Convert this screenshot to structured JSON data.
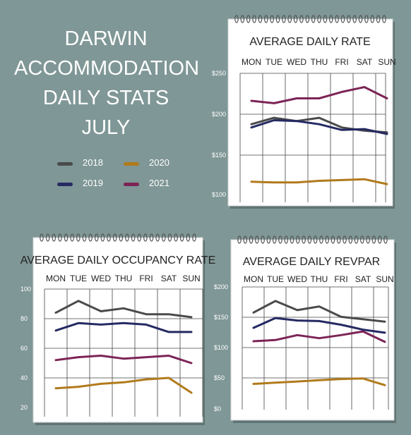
{
  "title_lines": [
    "DARWIN",
    "ACCOMMODATION",
    "DAILY STATS",
    "JULY"
  ],
  "colors": {
    "background": "#7f9796",
    "2018": "#4a4a4a",
    "2019": "#252a63",
    "2020": "#b17a1c",
    "2021": "#7c2456"
  },
  "legend": [
    {
      "label": "2018",
      "color": "#4a4a4a"
    },
    {
      "label": "2020",
      "color": "#b17a1c"
    },
    {
      "label": "2019",
      "color": "#252a63"
    },
    {
      "label": "2021",
      "color": "#7c2456"
    }
  ],
  "chart_data": [
    {
      "type": "line",
      "title": "AVERAGE DAILY RATE",
      "categories": [
        "MON",
        "TUE",
        "WED",
        "THU",
        "FRI",
        "SAT",
        "SUN"
      ],
      "yticks": [
        "$250",
        "$200",
        "$150",
        "$100"
      ],
      "ylim": [
        100,
        250
      ],
      "grid": true,
      "series": [
        {
          "name": "2018",
          "color": "#4a4a4a",
          "values": [
            187,
            195,
            191,
            195,
            183,
            179,
            177
          ]
        },
        {
          "name": "2019",
          "color": "#252a63",
          "values": [
            183,
            192,
            191,
            187,
            180,
            181,
            175
          ]
        },
        {
          "name": "2020",
          "color": "#b17a1c",
          "values": [
            116,
            115,
            115,
            117,
            118,
            119,
            113
          ]
        },
        {
          "name": "2021",
          "color": "#7c2456",
          "values": [
            216,
            213,
            219,
            219,
            227,
            233,
            219
          ]
        }
      ]
    },
    {
      "type": "line",
      "title": "AVERAGE DAILY OCCUPANCY RATE",
      "categories": [
        "MON",
        "TUE",
        "WED",
        "THU",
        "FRI",
        "SAT",
        "SUN"
      ],
      "yticks": [
        "100",
        "80",
        "60",
        "40",
        "20"
      ],
      "ylim": [
        20,
        100
      ],
      "grid": true,
      "series": [
        {
          "name": "2018",
          "color": "#4a4a4a",
          "values": [
            84,
            92,
            85,
            87,
            83,
            83,
            81
          ]
        },
        {
          "name": "2019",
          "color": "#252a63",
          "values": [
            72,
            77,
            76,
            77,
            76,
            71,
            71
          ]
        },
        {
          "name": "2020",
          "color": "#b17a1c",
          "values": [
            33,
            34,
            36,
            37,
            39,
            40,
            30
          ]
        },
        {
          "name": "2021",
          "color": "#7c2456",
          "values": [
            52,
            54,
            55,
            53,
            54,
            55,
            50
          ]
        }
      ]
    },
    {
      "type": "line",
      "title": "AVERAGE DAILY REVPAR",
      "categories": [
        "MON",
        "TUE",
        "WED",
        "THU",
        "FRI",
        "SAT",
        "SUN"
      ],
      "yticks": [
        "$200",
        "$150",
        "$100",
        "$50",
        "$0"
      ],
      "ylim": [
        0,
        200
      ],
      "grid": true,
      "series": [
        {
          "name": "2018",
          "color": "#4a4a4a",
          "values": [
            158,
            177,
            162,
            168,
            151,
            147,
            143
          ]
        },
        {
          "name": "2019",
          "color": "#252a63",
          "values": [
            133,
            149,
            145,
            144,
            138,
            130,
            125
          ]
        },
        {
          "name": "2020",
          "color": "#b17a1c",
          "values": [
            41,
            43,
            45,
            47,
            49,
            50,
            39
          ]
        },
        {
          "name": "2021",
          "color": "#7c2456",
          "values": [
            111,
            113,
            121,
            116,
            121,
            127,
            110
          ]
        }
      ]
    }
  ]
}
